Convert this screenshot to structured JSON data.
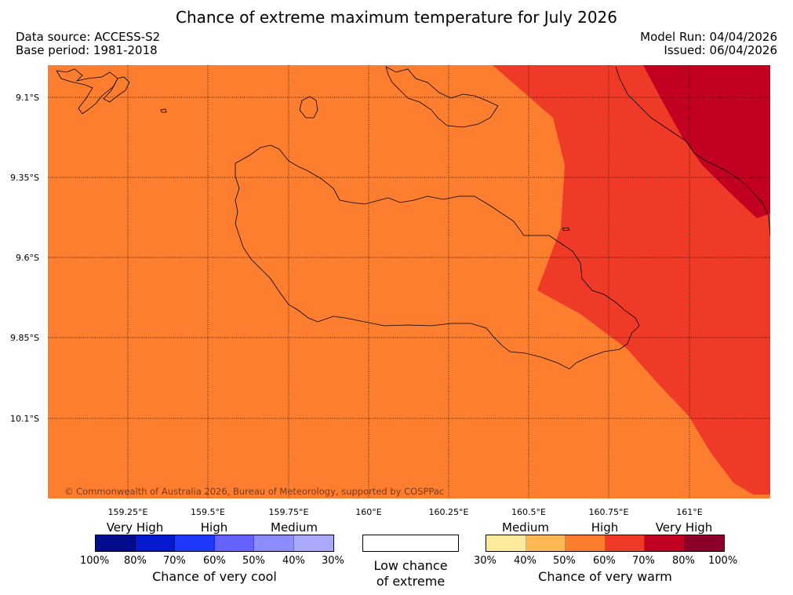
{
  "title": "Chance of extreme maximum temperature for July 2026",
  "data_source": "Data source: ACCESS-S2",
  "base_period": "Base period: 1981-2018",
  "model_run": "Model Run: 04/04/2026",
  "issued": "Issued: 06/04/2026",
  "copyright": "© Commonwealth of Australia 2026, Bureau of Meteorology, supported by COSPPac",
  "lat_labels": [
    "9.1°S",
    "9.35°S",
    "9.6°S",
    "9.85°S",
    "10.1°S"
  ],
  "lon_labels": [
    "159.25°E",
    "159.5°E",
    "159.75°E",
    "160°E",
    "160.25°E",
    "160.5°E",
    "160.75°E",
    "161°E"
  ],
  "colors": {
    "ocean_base": "#fd7e2f",
    "high": "#ee3a26",
    "very_high": "#c20022"
  },
  "legend": {
    "cool": {
      "title": "Chance of very cool",
      "categories": [
        "Very High",
        "High",
        "Medium"
      ],
      "ticks": [
        "100%",
        "80%",
        "70%",
        "60%",
        "50%",
        "40%",
        "30%"
      ],
      "colors": [
        "#000c8c",
        "#0319cf",
        "#1e37fd",
        "#6464fd",
        "#8c8cfd",
        "#aaaafd"
      ]
    },
    "neutral": {
      "line1": "Low chance",
      "line2": "of extreme"
    },
    "warm": {
      "title": "Chance of very warm",
      "categories": [
        "Medium",
        "High",
        "Very High"
      ],
      "ticks": [
        "30%",
        "40%",
        "50%",
        "60%",
        "70%",
        "80%",
        "100%"
      ],
      "colors": [
        "#ffeb9b",
        "#fdb854",
        "#fd7e2f",
        "#ee3a26",
        "#c20022",
        "#8a0028"
      ]
    }
  }
}
